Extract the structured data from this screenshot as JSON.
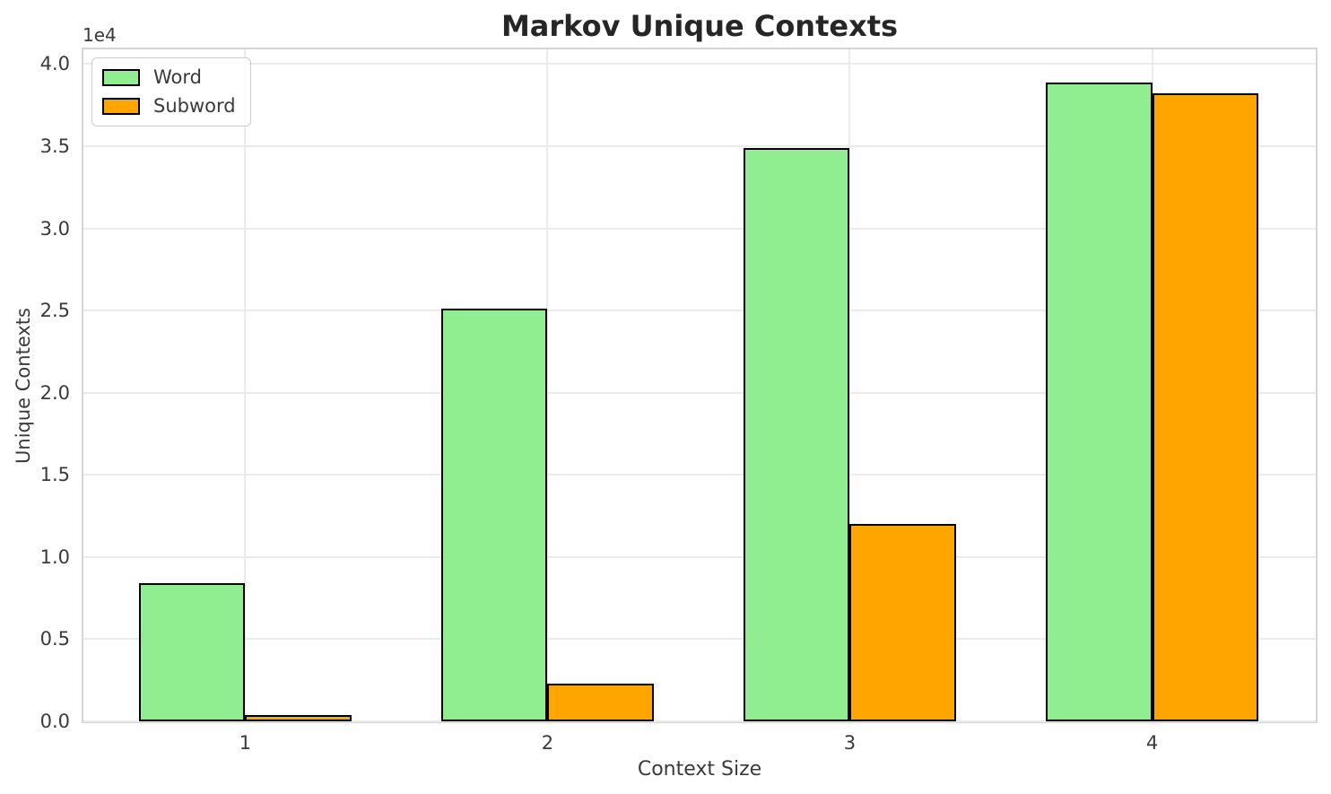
{
  "chart_data": {
    "type": "bar",
    "title": "Markov Unique Contexts",
    "xlabel": "Context Size",
    "ylabel": "Unique Contexts",
    "y_offset_label": "1e4",
    "categories": [
      "1",
      "2",
      "3",
      "4"
    ],
    "series": [
      {
        "name": "Word",
        "color": "#90EE90",
        "values": [
          8400,
          25100,
          34900,
          38900
        ]
      },
      {
        "name": "Subword",
        "color": "#FFA500",
        "values": [
          380,
          2300,
          12000,
          38250
        ]
      }
    ],
    "ylim": [
      0,
      40900
    ],
    "yticks": [
      0,
      5000,
      10000,
      15000,
      20000,
      25000,
      30000,
      35000,
      40000
    ],
    "ytick_labels": [
      "0.0",
      "0.5",
      "1.0",
      "1.5",
      "2.0",
      "2.5",
      "3.0",
      "3.5",
      "4.0"
    ],
    "grid": true,
    "legend_position": "upper left",
    "bar_edge_color": "#000000",
    "grid_color": "#EBEBEB",
    "spine_color": "#D5D5D5"
  }
}
